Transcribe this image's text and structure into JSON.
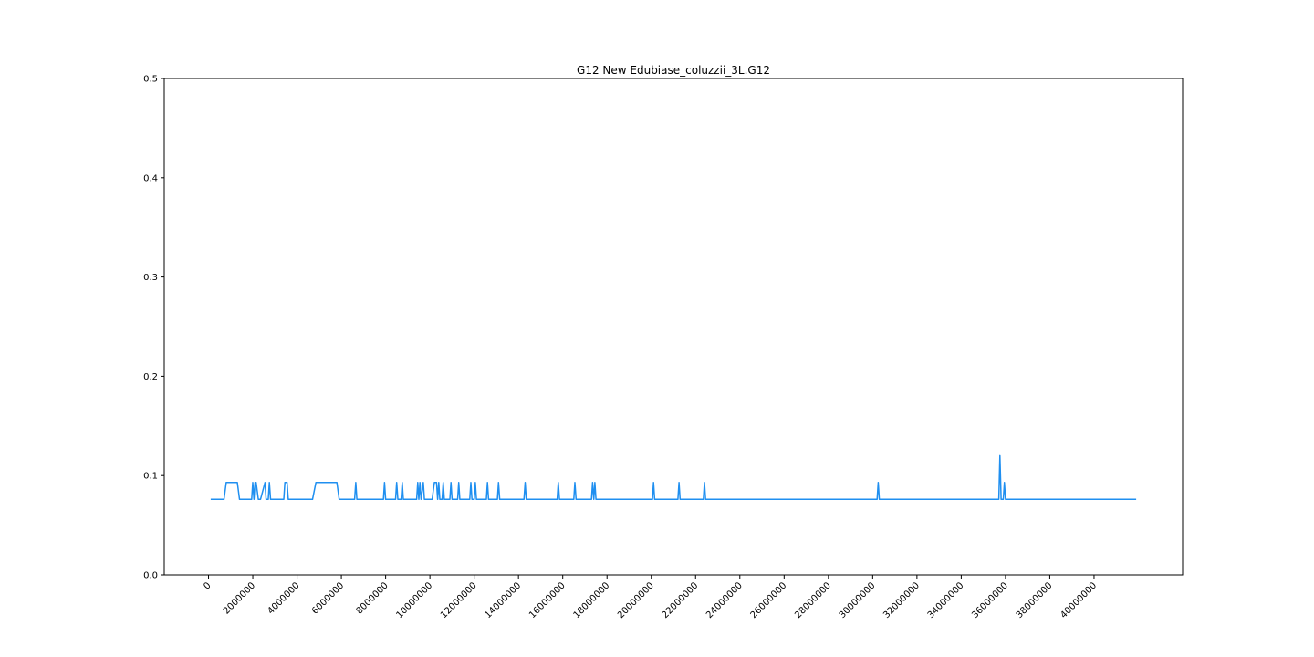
{
  "chart_data": {
    "type": "line",
    "title": "G12 New Edubiase_coluzzii_3L.G12",
    "xlabel": "",
    "ylabel": "",
    "xlim": [
      -2000000,
      44000000
    ],
    "ylim": [
      0,
      0.5
    ],
    "grid": false,
    "line_color": "#1f8ff0",
    "x_ticks": [
      0,
      2000000,
      4000000,
      6000000,
      8000000,
      10000000,
      12000000,
      14000000,
      16000000,
      18000000,
      20000000,
      22000000,
      24000000,
      26000000,
      28000000,
      30000000,
      32000000,
      34000000,
      36000000,
      38000000,
      40000000
    ],
    "x_tick_labels": [
      "0",
      "2000000",
      "4000000",
      "6000000",
      "8000000",
      "10000000",
      "12000000",
      "14000000",
      "16000000",
      "18000000",
      "20000000",
      "22000000",
      "24000000",
      "26000000",
      "28000000",
      "30000000",
      "32000000",
      "34000000",
      "36000000",
      "38000000",
      "40000000"
    ],
    "y_ticks": [
      0,
      0.1,
      0.2,
      0.3,
      0.4,
      0.5
    ],
    "y_tick_labels": [
      "0.0",
      "0.1",
      "0.2",
      "0.3",
      "0.4",
      "0.5"
    ],
    "series": [
      {
        "x": [
          100000,
          700000,
          800000,
          1300000,
          1400000,
          1950000,
          2000000,
          2050000,
          2100000,
          2150000,
          2250000,
          2300000,
          2350000,
          2550000,
          2600000,
          2700000,
          2750000,
          2800000,
          2850000,
          3400000,
          3450000,
          3550000,
          3600000,
          4700000,
          4850000,
          5800000,
          5900000,
          6600000,
          6650000,
          6700000,
          7900000,
          7950000,
          8000000,
          8450000,
          8500000,
          8550000,
          8700000,
          8750000,
          8800000,
          9400000,
          9450000,
          9500000,
          9550000,
          9600000,
          9700000,
          9750000,
          10100000,
          10200000,
          10300000,
          10350000,
          10400000,
          10450000,
          10550000,
          10600000,
          10650000,
          10900000,
          10950000,
          11000000,
          11250000,
          11300000,
          11350000,
          11800000,
          11850000,
          11900000,
          12000000,
          12050000,
          12100000,
          12550000,
          12600000,
          12650000,
          13050000,
          13100000,
          13150000,
          14250000,
          14300000,
          14350000,
          15750000,
          15800000,
          15850000,
          16500000,
          16550000,
          16600000,
          17300000,
          17350000,
          17400000,
          17450000,
          17500000,
          20050000,
          20100000,
          20150000,
          21200000,
          21250000,
          21300000,
          22350000,
          22400000,
          22450000,
          30200000,
          30250000,
          30300000,
          35700000,
          35750000,
          35800000,
          35900000,
          35950000,
          36000000,
          41900000
        ],
        "y": [
          0.076,
          0.076,
          0.093,
          0.093,
          0.076,
          0.076,
          0.093,
          0.076,
          0.093,
          0.093,
          0.076,
          0.076,
          0.076,
          0.093,
          0.076,
          0.076,
          0.093,
          0.076,
          0.076,
          0.076,
          0.093,
          0.093,
          0.076,
          0.076,
          0.093,
          0.093,
          0.076,
          0.076,
          0.093,
          0.076,
          0.076,
          0.093,
          0.076,
          0.076,
          0.093,
          0.076,
          0.076,
          0.093,
          0.076,
          0.076,
          0.093,
          0.076,
          0.093,
          0.076,
          0.093,
          0.076,
          0.076,
          0.093,
          0.093,
          0.076,
          0.093,
          0.076,
          0.076,
          0.093,
          0.076,
          0.076,
          0.093,
          0.076,
          0.076,
          0.093,
          0.076,
          0.076,
          0.093,
          0.076,
          0.076,
          0.093,
          0.076,
          0.076,
          0.093,
          0.076,
          0.076,
          0.093,
          0.076,
          0.076,
          0.093,
          0.076,
          0.076,
          0.093,
          0.076,
          0.076,
          0.093,
          0.076,
          0.076,
          0.093,
          0.076,
          0.093,
          0.076,
          0.076,
          0.093,
          0.076,
          0.076,
          0.093,
          0.076,
          0.076,
          0.093,
          0.076,
          0.076,
          0.093,
          0.076,
          0.076,
          0.12,
          0.076,
          0.076,
          0.093,
          0.076,
          0.076
        ]
      }
    ]
  }
}
